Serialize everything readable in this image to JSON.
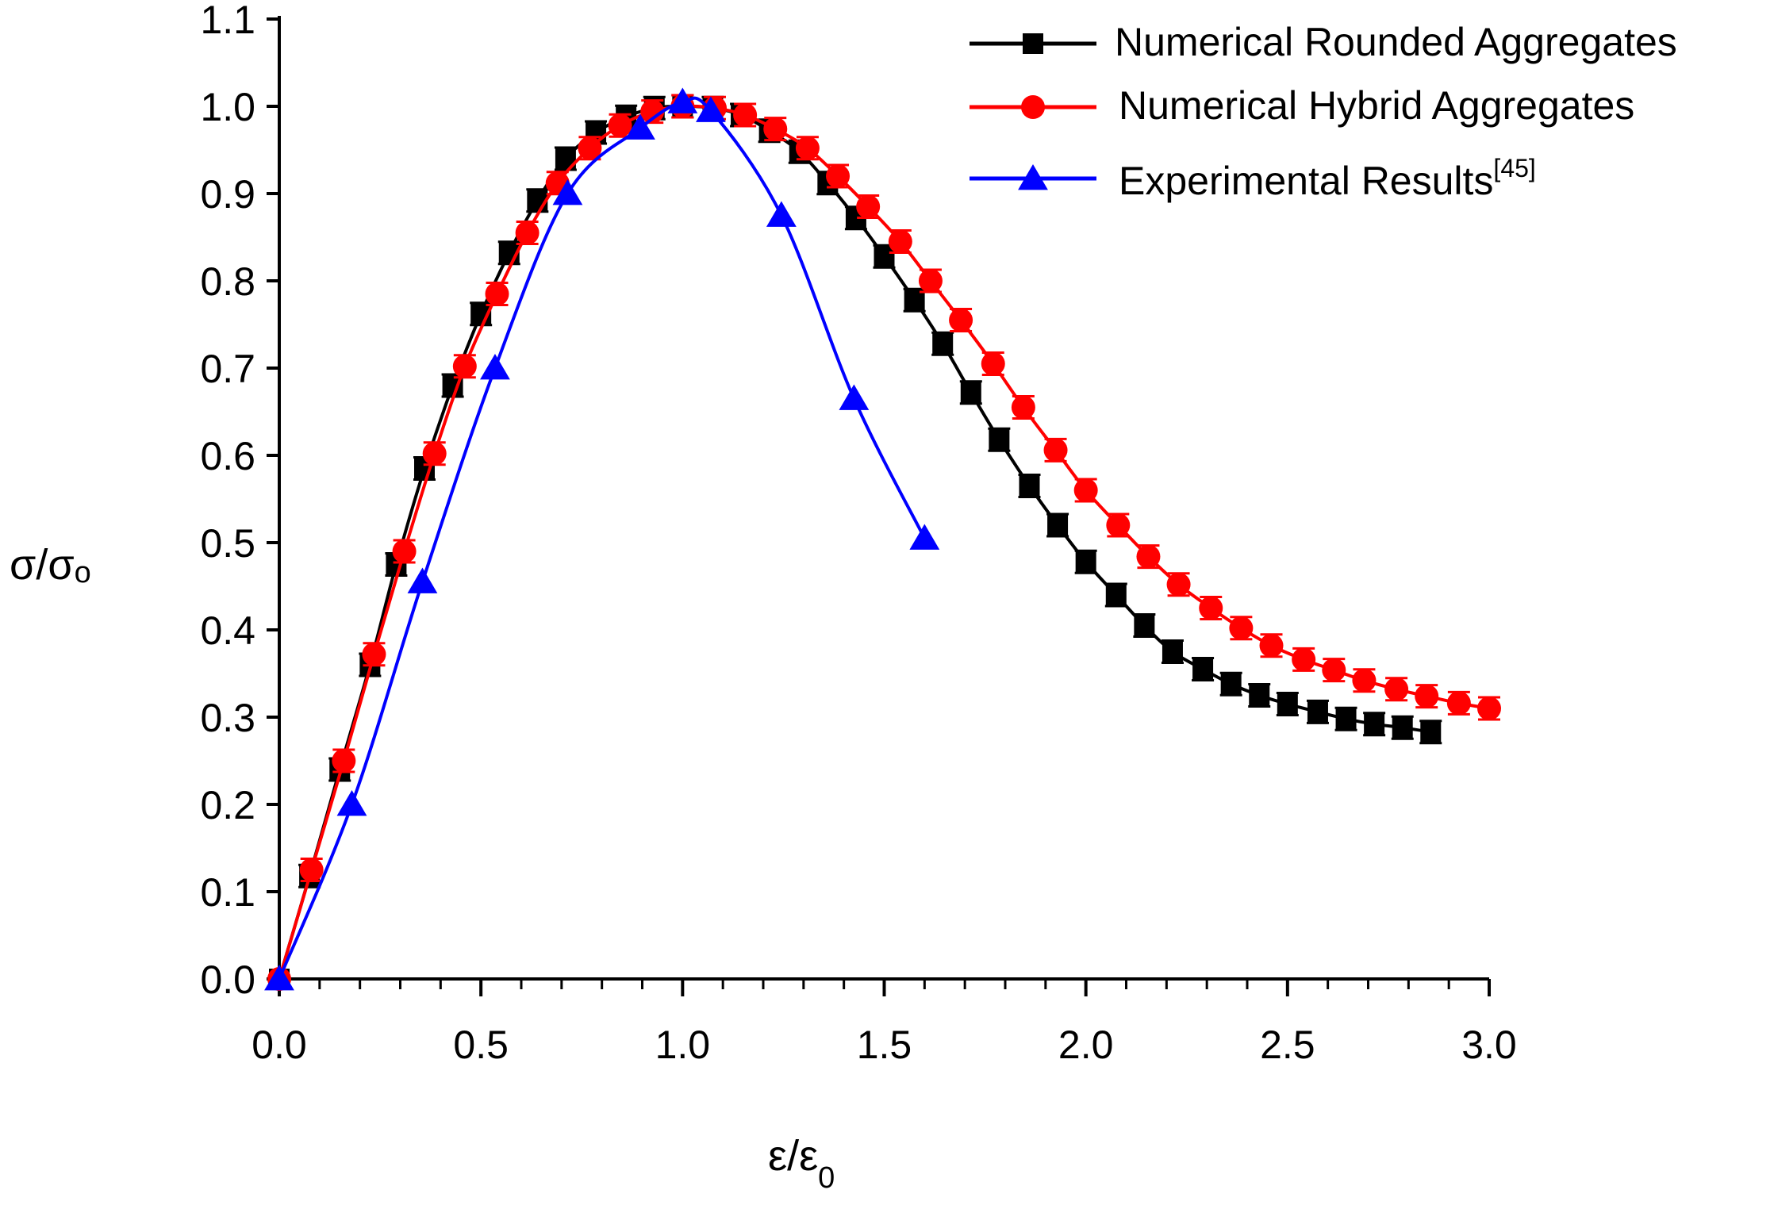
{
  "chart_data": {
    "type": "line",
    "title": "",
    "xlabel_main": "ε/ε",
    "xlabel_sub": "0",
    "ylabel_main": "σ/σ",
    "ylabel_sub": "o",
    "xlim": [
      0,
      3.0
    ],
    "ylim": [
      0,
      1.1
    ],
    "xticks": [
      0.0,
      0.5,
      1.0,
      1.5,
      2.0,
      2.5,
      3.0
    ],
    "xtick_labels": [
      "0.0",
      "0.5",
      "1.0",
      "1.5",
      "2.0",
      "2.5",
      "3.0"
    ],
    "yticks": [
      0.0,
      0.1,
      0.2,
      0.3,
      0.4,
      0.5,
      0.6,
      0.7,
      0.8,
      0.9,
      1.0,
      1.1
    ],
    "ytick_labels": [
      "0.0",
      "0.1",
      "0.2",
      "0.3",
      "0.4",
      "0.5",
      "0.6",
      "0.7",
      "0.8",
      "0.9",
      "1.0",
      "1.1"
    ],
    "grid": false,
    "legend_position": "top-right",
    "series": [
      {
        "name": "Numerical Rounded Aggregates",
        "marker": "square",
        "color": "#000000",
        "x": [
          0.0,
          0.075,
          0.15,
          0.225,
          0.29,
          0.36,
          0.43,
          0.5,
          0.57,
          0.64,
          0.71,
          0.785,
          0.86,
          0.93,
          1.0,
          1.075,
          1.145,
          1.215,
          1.29,
          1.36,
          1.43,
          1.5,
          1.575,
          1.645,
          1.715,
          1.785,
          1.86,
          1.93,
          2.0,
          2.075,
          2.145,
          2.215,
          2.29,
          2.36,
          2.43,
          2.5,
          2.575,
          2.645,
          2.715,
          2.785,
          2.855
        ],
        "y": [
          0.0,
          0.118,
          0.24,
          0.36,
          0.475,
          0.585,
          0.68,
          0.762,
          0.832,
          0.892,
          0.94,
          0.97,
          0.988,
          0.998,
          1.0,
          0.998,
          0.99,
          0.972,
          0.948,
          0.912,
          0.872,
          0.828,
          0.778,
          0.728,
          0.672,
          0.618,
          0.565,
          0.52,
          0.478,
          0.44,
          0.405,
          0.375,
          0.355,
          0.338,
          0.325,
          0.315,
          0.306,
          0.298,
          0.292,
          0.288,
          0.283
        ]
      },
      {
        "name": "Numerical Hybrid Aggregates",
        "marker": "circle",
        "color": "#ff0000",
        "x": [
          0.0,
          0.08,
          0.16,
          0.235,
          0.31,
          0.385,
          0.46,
          0.54,
          0.615,
          0.69,
          0.77,
          0.845,
          0.925,
          1.0,
          1.08,
          1.155,
          1.23,
          1.31,
          1.385,
          1.46,
          1.54,
          1.615,
          1.69,
          1.77,
          1.845,
          1.925,
          2.0,
          2.08,
          2.155,
          2.23,
          2.31,
          2.385,
          2.46,
          2.54,
          2.615,
          2.69,
          2.77,
          2.845,
          2.925,
          3.0
        ],
        "y": [
          0.0,
          0.125,
          0.25,
          0.372,
          0.49,
          0.602,
          0.702,
          0.785,
          0.855,
          0.912,
          0.952,
          0.978,
          0.994,
          1.0,
          0.998,
          0.99,
          0.974,
          0.952,
          0.92,
          0.885,
          0.845,
          0.8,
          0.755,
          0.705,
          0.655,
          0.606,
          0.56,
          0.52,
          0.484,
          0.452,
          0.425,
          0.402,
          0.382,
          0.366,
          0.354,
          0.342,
          0.332,
          0.324,
          0.316,
          0.31
        ]
      },
      {
        "name": "Experimental Results",
        "name_superscript": "[45]",
        "marker": "triangle",
        "color": "#0000ff",
        "x": [
          0.0,
          0.18,
          0.355,
          0.535,
          0.715,
          0.895,
          1.0,
          1.07,
          1.245,
          1.425,
          1.6
        ],
        "y": [
          0.0,
          0.2,
          0.455,
          0.7,
          0.9,
          0.975,
          1.005,
          0.995,
          0.875,
          0.665,
          0.505
        ]
      }
    ]
  }
}
